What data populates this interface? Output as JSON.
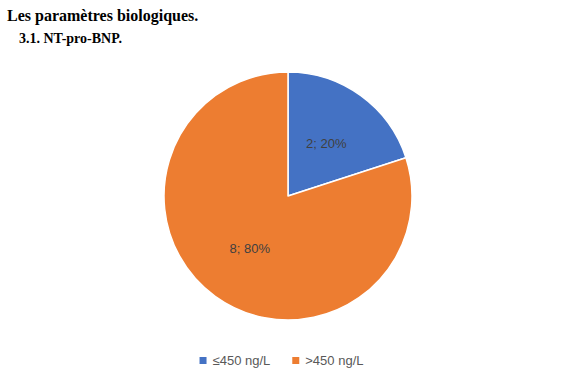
{
  "chart_data": {
    "type": "pie",
    "title": "Les paramètres biologiques.",
    "subtitle": "3.1. NT-pro-BNP.",
    "categories": [
      "≤450 ng/L",
      ">450 ng/L"
    ],
    "values": [
      2,
      8
    ],
    "value_labels": [
      "2; 20%",
      "8; 80%"
    ],
    "colors": [
      "#4472c4",
      "#ed7d31"
    ],
    "data_labels": true,
    "legend": "bottom"
  }
}
